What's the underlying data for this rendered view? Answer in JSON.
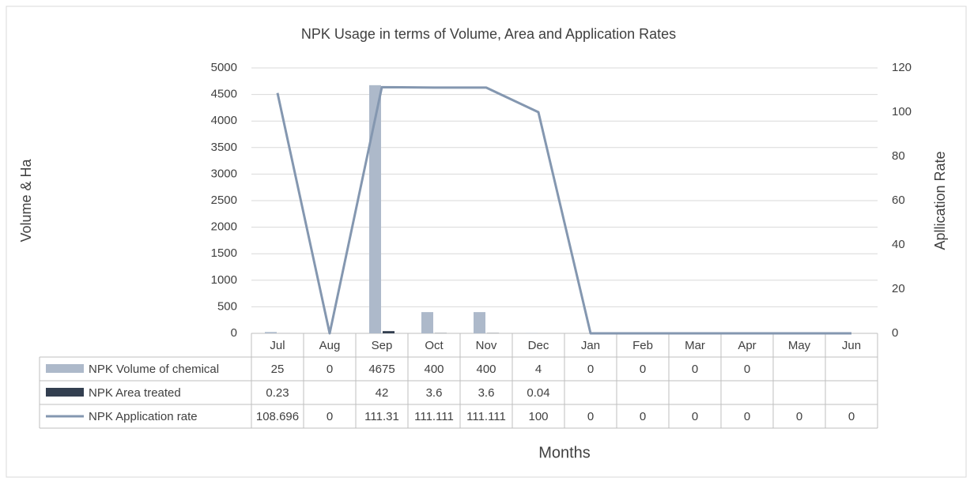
{
  "chart_data": {
    "type": "bar-line-table",
    "title": "NPK Usage in terms of Volume, Area and Application Rates",
    "ylabel": "Volume & Ha",
    "y2label": "Apllication Rate",
    "xlabel": "Months",
    "categories": [
      "Jul",
      "Aug",
      "Sep",
      "Oct",
      "Nov",
      "Dec",
      "Jan",
      "Feb",
      "Mar",
      "Apr",
      "May",
      "Jun"
    ],
    "series": [
      {
        "name": "NPK Volume of chemical",
        "type": "bar",
        "color": "#adb9ca",
        "values": [
          25,
          0,
          4675,
          400,
          400,
          4,
          0,
          0,
          0,
          0,
          null,
          null
        ]
      },
      {
        "name": "NPK Area treated",
        "type": "bar",
        "color": "#333f50",
        "values": [
          0.23,
          null,
          42,
          3.6,
          3.6,
          0.04,
          null,
          null,
          null,
          null,
          null,
          null
        ]
      },
      {
        "name": "NPK Application rate",
        "type": "line",
        "axis": "y2",
        "color": "#8497b0",
        "values": [
          108.696,
          0,
          111.31,
          111.111,
          111.111,
          100,
          0,
          0,
          0,
          0,
          0,
          0
        ]
      }
    ],
    "ylim": [
      0,
      5000
    ],
    "yticks": [
      0,
      500,
      1000,
      1500,
      2000,
      2500,
      3000,
      3500,
      4000,
      4500,
      5000
    ],
    "y2lim": [
      0,
      120
    ],
    "y2ticks": [
      0,
      20,
      40,
      60,
      80,
      100,
      120
    ],
    "grid": true
  }
}
